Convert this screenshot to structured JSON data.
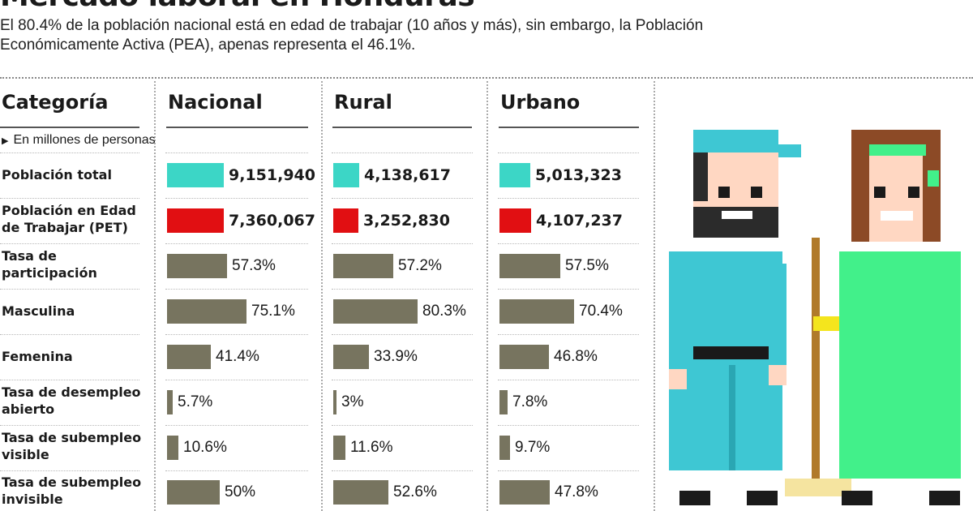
{
  "header": {
    "title": "Mercado laboral en Honduras",
    "subtitle": "El 80.4% de la población nacional está en edad de trabajar (10 años y más), sin embargo, la Población Económicamente Activa (PEA), apenas representa el 46.1%."
  },
  "table": {
    "category_header": "Categoría",
    "columns": [
      "Nacional",
      "Rural",
      "Urbano"
    ],
    "note": "En millones de personas",
    "rows": [
      {
        "label": "Población total",
        "values": [
          "9,151,940",
          "4,138,617",
          "5,013,323"
        ]
      },
      {
        "label": "Población en Edad de Trabajar (PET)",
        "values": [
          "7,360,067",
          "3,252,830",
          "4,107,237"
        ]
      },
      {
        "label": "Tasa de participación",
        "values": [
          "57.3%",
          "57.2%",
          "57.5%"
        ]
      },
      {
        "label": "Masculina",
        "values": [
          "75.1%",
          "80.3%",
          "70.4%"
        ]
      },
      {
        "label": "Femenina",
        "values": [
          "41.4%",
          "33.9%",
          "46.8%"
        ]
      },
      {
        "label": "Tasa de desempleo abierto",
        "values": [
          "5.7%",
          "3%",
          "7.8%"
        ]
      },
      {
        "label": "Tasa de subempleo visible",
        "values": [
          "10.6%",
          "11.6%",
          "9.7%"
        ]
      },
      {
        "label": "Tasa de subempleo invisible",
        "values": [
          "50%",
          "52.6%",
          "47.8%"
        ]
      }
    ]
  },
  "chart_data": {
    "type": "bar",
    "title": "Mercado laboral en Honduras",
    "categories": [
      "Nacional",
      "Rural",
      "Urbano"
    ],
    "series": [
      {
        "name": "Población total",
        "values": [
          9151940,
          4138617,
          5013323
        ]
      },
      {
        "name": "Población en Edad de Trabajar (PET)",
        "values": [
          7360067,
          3252830,
          4107237
        ]
      },
      {
        "name": "Tasa de participación",
        "values": [
          57.3,
          57.2,
          57.5
        ]
      },
      {
        "name": "Masculina",
        "values": [
          75.1,
          80.3,
          70.4
        ]
      },
      {
        "name": "Femenina",
        "values": [
          41.4,
          33.9,
          46.8
        ]
      },
      {
        "name": "Tasa de desempleo abierto",
        "values": [
          5.7,
          3,
          7.8
        ]
      },
      {
        "name": "Tasa de subempleo visible",
        "values": [
          10.6,
          11.6,
          9.7
        ]
      },
      {
        "name": "Tasa de subempleo invisible",
        "values": [
          50,
          52.6,
          47.8
        ]
      }
    ]
  },
  "colors": {
    "poblacion_total": "#3cd6c6",
    "pet": "#e10f12",
    "tasas": "#77745f"
  }
}
